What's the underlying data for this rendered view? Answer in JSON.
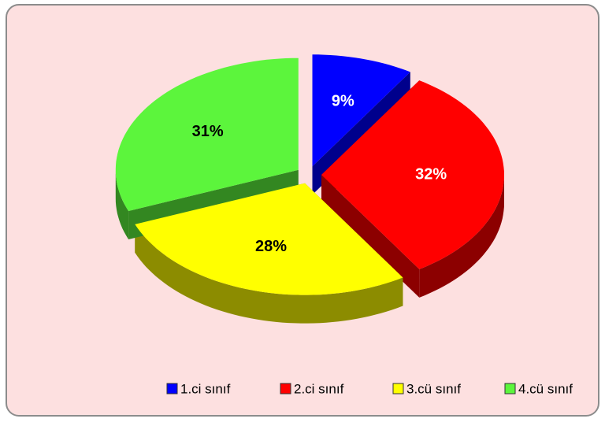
{
  "chart_data": {
    "type": "pie",
    "categories": [
      "1.ci sınıf",
      "2.ci sınıf",
      "3.cü sınıf",
      "4.cü sınıf"
    ],
    "values": [
      9,
      32,
      28,
      31
    ],
    "value_labels": [
      "9%",
      "32%",
      "28%",
      "31%"
    ],
    "colors": [
      "#0000ff",
      "#ff0000",
      "#ffff00",
      "#5cf53c"
    ],
    "legend": "bottom"
  }
}
